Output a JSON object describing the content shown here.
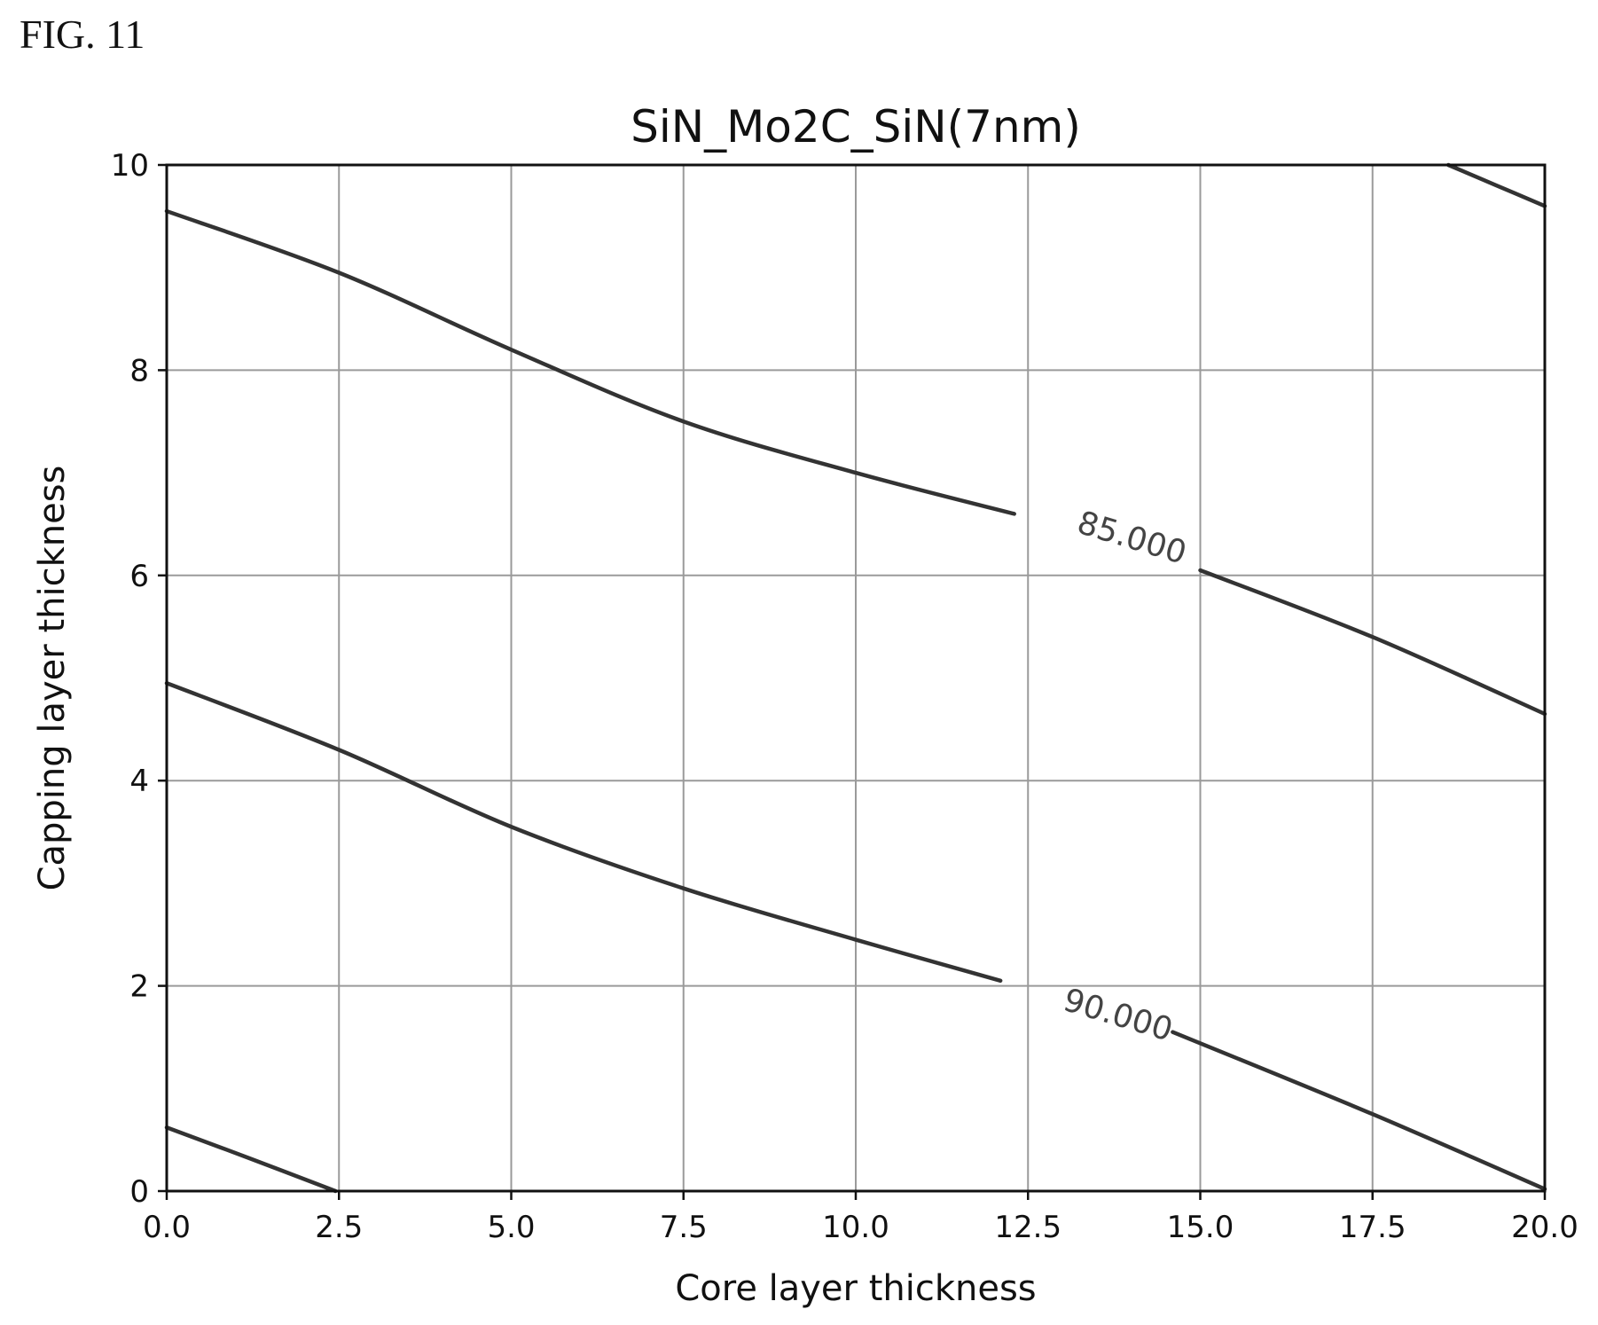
{
  "figure_label": "FIG. 11",
  "chart_data": {
    "type": "contour",
    "title": "SiN_Mo2C_SiN(7nm)",
    "xlabel": "Core layer thickness",
    "ylabel": "Capping layer thickness",
    "xlim": [
      0,
      20
    ],
    "ylim": [
      0,
      10
    ],
    "x_ticks": [
      0,
      2.5,
      5,
      7.5,
      10,
      12.5,
      15,
      17.5,
      20
    ],
    "x_tick_labels": [
      "0.0",
      "2.5",
      "5.0",
      "7.5",
      "10.0",
      "12.5",
      "15.0",
      "17.5",
      "20.0"
    ],
    "y_ticks": [
      0,
      2,
      4,
      6,
      8,
      10
    ],
    "y_tick_labels": [
      "0",
      "2",
      "4",
      "6",
      "8",
      "10"
    ],
    "grid": true,
    "contours": [
      {
        "label": "85.000",
        "label_position": [
          14.0,
          6.35
        ],
        "segments": [
          [
            [
              0,
              9.55
            ],
            [
              2.5,
              8.95
            ],
            [
              5,
              8.2
            ],
            [
              7.5,
              7.5
            ],
            [
              10,
              7.0
            ],
            [
              12.3,
              6.6
            ]
          ],
          [
            [
              15.0,
              6.05
            ],
            [
              17.5,
              5.4
            ],
            [
              20,
              4.65
            ]
          ]
        ]
      },
      {
        "label": "90.000",
        "label_position": [
          13.8,
          1.7
        ],
        "segments": [
          [
            [
              0,
              4.95
            ],
            [
              2.5,
              4.3
            ],
            [
              5,
              3.55
            ],
            [
              7.5,
              2.95
            ],
            [
              10,
              2.45
            ],
            [
              12.1,
              2.05
            ]
          ],
          [
            [
              14.6,
              1.55
            ],
            [
              17.5,
              0.75
            ],
            [
              20,
              0.02
            ]
          ]
        ]
      },
      {
        "label": "",
        "segments": [
          [
            [
              0,
              0.62
            ],
            [
              1.2,
              0.32
            ],
            [
              2.45,
              0.0
            ]
          ]
        ]
      },
      {
        "label": "",
        "segments": [
          [
            [
              18.6,
              10.0
            ],
            [
              19.3,
              9.8
            ],
            [
              20,
              9.6
            ]
          ]
        ]
      }
    ]
  }
}
